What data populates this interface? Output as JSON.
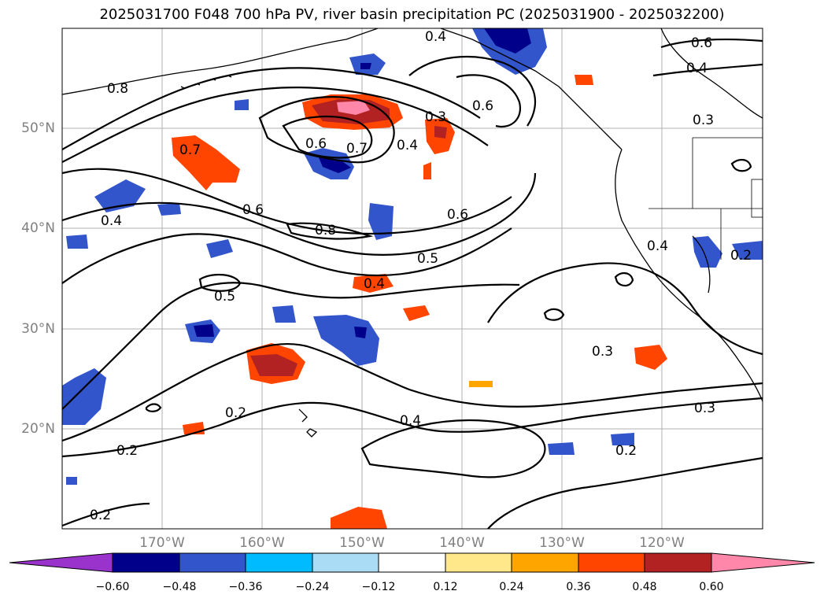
{
  "title": "2025031700 F048 700 hPa PV, river basin precipitation PC (2025031900 - 2025032200)",
  "lat_labels": [
    "50°N",
    "40°N",
    "30°N",
    "20°N"
  ],
  "lon_labels": [
    "170°W",
    "160°W",
    "150°W",
    "140°W",
    "130°W",
    "120°W"
  ],
  "colorbar": {
    "ticks": [
      "−0.60",
      "−0.48",
      "−0.36",
      "−0.24",
      "−0.12",
      "0.12",
      "0.24",
      "0.36",
      "0.48",
      "0.60"
    ],
    "colors": [
      "#9933cc",
      "#00008b",
      "#3355cc",
      "#00bbff",
      "#aaddf5",
      "#ffffff",
      "#ffe88a",
      "#ffa500",
      "#ff4500",
      "#b22222",
      "#ff88aa"
    ]
  },
  "contour_labels": [
    "0.4",
    "0.6",
    "0.4",
    "0.8",
    "0.3",
    "0.6",
    "0.3",
    "0.7",
    "0.6",
    "0.7",
    "0.4",
    "0.4",
    "0.6",
    "0.6",
    "0.8",
    "0.5",
    "0.4",
    "0.4",
    "0.2",
    "0.5",
    "0.3",
    "0.2",
    "0.4",
    "0.3",
    "0.2",
    "0.2",
    "0.2"
  ]
}
